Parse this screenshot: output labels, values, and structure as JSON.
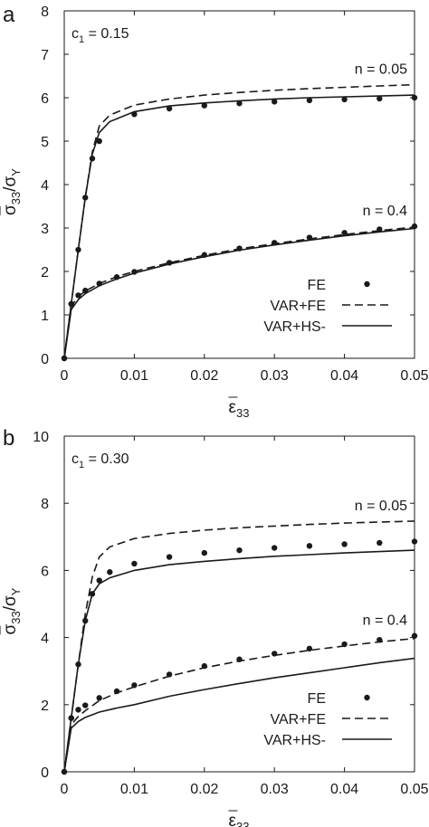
{
  "chart_data": [
    {
      "type": "line",
      "panel_label": "a",
      "annotation": "c",
      "annotation_sub": "1",
      "annotation_value": " = 0.15",
      "xlabel_main": "ε",
      "xlabel_sub": "33",
      "ylabel_main": "σ",
      "ylabel_sub": "33",
      "ylabel_denom": "/σ",
      "ylabel_denom_sub": "Y",
      "xlim": [
        0,
        0.05
      ],
      "ylim": [
        0,
        8
      ],
      "xticks": [
        0,
        0.01,
        0.02,
        0.03,
        0.04,
        0.05
      ],
      "xtick_labels": [
        "0",
        "0.01",
        "0.02",
        "0.03",
        "0.04",
        "0.05"
      ],
      "yticks": [
        0,
        1,
        2,
        3,
        4,
        5,
        6,
        7,
        8
      ],
      "ytick_labels": [
        "0",
        "1",
        "2",
        "3",
        "4",
        "5",
        "6",
        "7",
        "8"
      ],
      "groups": [
        {
          "label": "n = 0.05",
          "series": [
            {
              "name": "FE",
              "style": "dots",
              "x": [
                0,
                0.001,
                0.002,
                0.003,
                0.004,
                0.005,
                0.01,
                0.015,
                0.02,
                0.025,
                0.03,
                0.035,
                0.04,
                0.045,
                0.05
              ],
              "y": [
                0,
                1.25,
                2.5,
                3.7,
                4.6,
                5.0,
                5.62,
                5.75,
                5.82,
                5.87,
                5.91,
                5.94,
                5.96,
                5.98,
                6.0
              ]
            },
            {
              "name": "VAR+FE",
              "style": "dashed",
              "x": [
                0,
                0.001,
                0.002,
                0.003,
                0.004,
                0.005,
                0.0065,
                0.01,
                0.015,
                0.02,
                0.025,
                0.03,
                0.035,
                0.04,
                0.045,
                0.05
              ],
              "y": [
                0,
                1.25,
                2.5,
                3.7,
                4.75,
                5.35,
                5.6,
                5.83,
                5.97,
                6.06,
                6.12,
                6.17,
                6.21,
                6.24,
                6.27,
                6.3
              ]
            },
            {
              "name": "VAR+HS-",
              "style": "solid",
              "x": [
                0,
                0.001,
                0.002,
                0.003,
                0.004,
                0.005,
                0.0065,
                0.01,
                0.015,
                0.02,
                0.025,
                0.03,
                0.035,
                0.04,
                0.045,
                0.05
              ],
              "y": [
                0,
                1.25,
                2.5,
                3.7,
                4.7,
                5.2,
                5.45,
                5.68,
                5.81,
                5.88,
                5.93,
                5.97,
                6.0,
                6.02,
                6.04,
                6.06
              ]
            }
          ]
        },
        {
          "label": "n = 0.4",
          "series": [
            {
              "name": "FE",
              "style": "dots",
              "x": [
                0,
                0.001,
                0.002,
                0.003,
                0.005,
                0.0075,
                0.01,
                0.015,
                0.02,
                0.025,
                0.03,
                0.035,
                0.04,
                0.045,
                0.05
              ],
              "y": [
                0,
                1.25,
                1.45,
                1.56,
                1.72,
                1.87,
                1.99,
                2.2,
                2.38,
                2.53,
                2.66,
                2.78,
                2.89,
                2.97,
                3.04
              ]
            },
            {
              "name": "VAR+FE",
              "style": "dashed",
              "x": [
                0,
                0.001,
                0.002,
                0.003,
                0.005,
                0.0075,
                0.01,
                0.015,
                0.02,
                0.025,
                0.03,
                0.035,
                0.04,
                0.045,
                0.05
              ],
              "y": [
                0,
                1.2,
                1.42,
                1.55,
                1.72,
                1.88,
                2.0,
                2.2,
                2.37,
                2.52,
                2.64,
                2.75,
                2.85,
                2.94,
                3.02
              ]
            },
            {
              "name": "VAR+HS-",
              "style": "solid",
              "x": [
                0,
                0.001,
                0.002,
                0.003,
                0.005,
                0.0075,
                0.01,
                0.015,
                0.02,
                0.025,
                0.03,
                0.035,
                0.04,
                0.045,
                0.05
              ],
              "y": [
                0,
                1.12,
                1.35,
                1.49,
                1.67,
                1.83,
                1.96,
                2.17,
                2.34,
                2.49,
                2.61,
                2.72,
                2.82,
                2.91,
                2.99
              ]
            }
          ]
        }
      ],
      "legend": {
        "position": "bottom-right",
        "entries": [
          {
            "name": "FE",
            "style": "dots"
          },
          {
            "name": "VAR+FE",
            "style": "dashed"
          },
          {
            "name": "VAR+HS-",
            "style": "solid"
          }
        ]
      }
    },
    {
      "type": "line",
      "panel_label": "b",
      "annotation": "c",
      "annotation_sub": "1",
      "annotation_value": " = 0.30",
      "xlabel_main": "ε",
      "xlabel_sub": "33",
      "ylabel_main": "σ",
      "ylabel_sub": "33",
      "ylabel_denom": "/σ",
      "ylabel_denom_sub": "Y",
      "xlim": [
        0,
        0.05
      ],
      "ylim": [
        0,
        10
      ],
      "xticks": [
        0,
        0.01,
        0.02,
        0.03,
        0.04,
        0.05
      ],
      "xtick_labels": [
        "0",
        "0.01",
        "0.02",
        "0.03",
        "0.04",
        "0.05"
      ],
      "yticks": [
        0,
        2,
        4,
        6,
        8,
        10
      ],
      "ytick_labels": [
        "0",
        "2",
        "4",
        "6",
        "8",
        "10"
      ],
      "groups": [
        {
          "label": "n = 0.05",
          "series": [
            {
              "name": "FE",
              "style": "dots",
              "x": [
                0,
                0.001,
                0.002,
                0.003,
                0.004,
                0.005,
                0.0065,
                0.01,
                0.015,
                0.02,
                0.025,
                0.03,
                0.035,
                0.04,
                0.045,
                0.05
              ],
              "y": [
                0,
                1.6,
                3.2,
                4.5,
                5.3,
                5.7,
                5.95,
                6.2,
                6.4,
                6.52,
                6.6,
                6.67,
                6.73,
                6.78,
                6.82,
                6.86
              ]
            },
            {
              "name": "VAR+FE",
              "style": "dashed",
              "x": [
                0,
                0.001,
                0.002,
                0.003,
                0.004,
                0.005,
                0.0065,
                0.01,
                0.015,
                0.02,
                0.025,
                0.03,
                0.035,
                0.04,
                0.045,
                0.05
              ],
              "y": [
                0,
                1.6,
                3.2,
                4.7,
                5.8,
                6.4,
                6.7,
                6.95,
                7.1,
                7.2,
                7.27,
                7.32,
                7.37,
                7.41,
                7.44,
                7.47
              ]
            },
            {
              "name": "VAR+HS-",
              "style": "solid",
              "x": [
                0,
                0.001,
                0.002,
                0.003,
                0.004,
                0.005,
                0.0065,
                0.01,
                0.015,
                0.02,
                0.025,
                0.03,
                0.035,
                0.04,
                0.045,
                0.05
              ],
              "y": [
                0,
                1.6,
                3.2,
                4.5,
                5.3,
                5.6,
                5.78,
                6.0,
                6.17,
                6.27,
                6.35,
                6.42,
                6.47,
                6.52,
                6.56,
                6.6
              ]
            }
          ]
        },
        {
          "label": "n = 0.4",
          "series": [
            {
              "name": "FE",
              "style": "dots",
              "x": [
                0,
                0.001,
                0.002,
                0.003,
                0.005,
                0.0075,
                0.01,
                0.015,
                0.02,
                0.025,
                0.03,
                0.035,
                0.04,
                0.045,
                0.05
              ],
              "y": [
                0,
                1.6,
                1.85,
                1.98,
                2.2,
                2.4,
                2.58,
                2.9,
                3.15,
                3.35,
                3.52,
                3.67,
                3.8,
                3.93,
                4.05
              ]
            },
            {
              "name": "VAR+FE",
              "style": "dashed",
              "x": [
                0,
                0.001,
                0.002,
                0.003,
                0.005,
                0.0075,
                0.01,
                0.015,
                0.02,
                0.025,
                0.03,
                0.035,
                0.04,
                0.045,
                0.05
              ],
              "y": [
                0,
                1.4,
                1.65,
                1.82,
                2.12,
                2.35,
                2.53,
                2.85,
                3.1,
                3.3,
                3.47,
                3.62,
                3.75,
                3.87,
                3.97
              ]
            },
            {
              "name": "VAR+HS-",
              "style": "solid",
              "x": [
                0,
                0.001,
                0.002,
                0.003,
                0.005,
                0.0075,
                0.01,
                0.015,
                0.02,
                0.025,
                0.03,
                0.035,
                0.04,
                0.045,
                0.05
              ],
              "y": [
                0,
                1.3,
                1.5,
                1.62,
                1.78,
                1.9,
                2.0,
                2.25,
                2.45,
                2.63,
                2.8,
                2.95,
                3.1,
                3.25,
                3.38
              ]
            }
          ]
        }
      ],
      "legend": {
        "position": "bottom-right",
        "entries": [
          {
            "name": "FE",
            "style": "dots"
          },
          {
            "name": "VAR+FE",
            "style": "dashed"
          },
          {
            "name": "VAR+HS-",
            "style": "solid"
          }
        ]
      }
    }
  ]
}
